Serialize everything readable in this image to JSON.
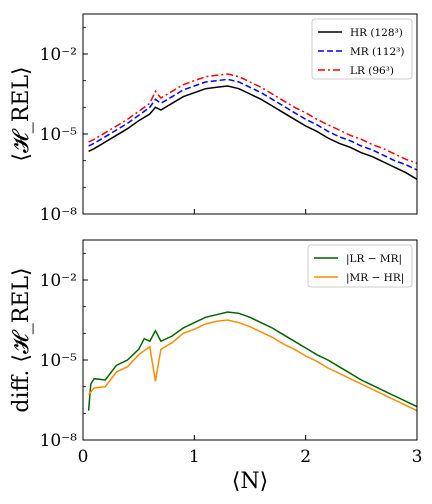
{
  "chart_data": [
    {
      "type": "line",
      "ylabel": "⟨𝓗_REL⟩",
      "xlim": [
        0,
        3
      ],
      "ylim_log10": [
        -8,
        -0.5
      ],
      "y_scale": "log",
      "y_ticks": [
        {
          "exp": -8,
          "label": "10⁻⁸"
        },
        {
          "exp": -5,
          "label": "10⁻⁵"
        },
        {
          "exp": -2,
          "label": "10⁻²"
        }
      ],
      "legend_position": "top-right",
      "series": [
        {
          "name": "HR (128³)",
          "color": "#000000",
          "style": "solid",
          "points": [
            [
              0.05,
              -5.65
            ],
            [
              0.1,
              -5.55
            ],
            [
              0.2,
              -5.3
            ],
            [
              0.3,
              -5.05
            ],
            [
              0.4,
              -4.8
            ],
            [
              0.5,
              -4.5
            ],
            [
              0.6,
              -4.25
            ],
            [
              0.65,
              -4.0
            ],
            [
              0.7,
              -4.1
            ],
            [
              0.8,
              -3.85
            ],
            [
              0.9,
              -3.6
            ],
            [
              1.0,
              -3.45
            ],
            [
              1.1,
              -3.3
            ],
            [
              1.2,
              -3.25
            ],
            [
              1.3,
              -3.2
            ],
            [
              1.4,
              -3.3
            ],
            [
              1.5,
              -3.5
            ],
            [
              1.6,
              -3.7
            ],
            [
              1.7,
              -3.95
            ],
            [
              1.8,
              -4.2
            ],
            [
              1.9,
              -4.45
            ],
            [
              2.0,
              -4.7
            ],
            [
              2.1,
              -4.9
            ],
            [
              2.2,
              -5.15
            ],
            [
              2.3,
              -5.35
            ],
            [
              2.4,
              -5.5
            ],
            [
              2.5,
              -5.7
            ],
            [
              2.6,
              -5.85
            ],
            [
              2.7,
              -6.05
            ],
            [
              2.8,
              -6.25
            ],
            [
              2.9,
              -6.45
            ],
            [
              3.0,
              -6.7
            ]
          ]
        },
        {
          "name": "MR (112³)",
          "color": "#0000ff",
          "style": "dashed",
          "points": [
            [
              0.05,
              -5.45
            ],
            [
              0.1,
              -5.35
            ],
            [
              0.2,
              -5.1
            ],
            [
              0.3,
              -4.85
            ],
            [
              0.4,
              -4.6
            ],
            [
              0.5,
              -4.3
            ],
            [
              0.6,
              -4.0
            ],
            [
              0.65,
              -3.7
            ],
            [
              0.7,
              -3.85
            ],
            [
              0.8,
              -3.6
            ],
            [
              0.9,
              -3.35
            ],
            [
              1.0,
              -3.2
            ],
            [
              1.1,
              -3.05
            ],
            [
              1.2,
              -3.0
            ],
            [
              1.3,
              -2.95
            ],
            [
              1.4,
              -3.05
            ],
            [
              1.5,
              -3.25
            ],
            [
              1.6,
              -3.45
            ],
            [
              1.7,
              -3.7
            ],
            [
              1.8,
              -3.95
            ],
            [
              1.9,
              -4.2
            ],
            [
              2.0,
              -4.45
            ],
            [
              2.1,
              -4.65
            ],
            [
              2.2,
              -4.9
            ],
            [
              2.3,
              -5.1
            ],
            [
              2.4,
              -5.25
            ],
            [
              2.5,
              -5.45
            ],
            [
              2.6,
              -5.6
            ],
            [
              2.7,
              -5.8
            ],
            [
              2.8,
              -6.0
            ],
            [
              2.9,
              -6.15
            ],
            [
              3.0,
              -6.35
            ]
          ]
        },
        {
          "name": "LR (96³)",
          "color": "#ff0000",
          "style": "dashdot",
          "points": [
            [
              0.05,
              -5.3
            ],
            [
              0.1,
              -5.2
            ],
            [
              0.2,
              -4.95
            ],
            [
              0.3,
              -4.7
            ],
            [
              0.4,
              -4.45
            ],
            [
              0.5,
              -4.15
            ],
            [
              0.6,
              -3.85
            ],
            [
              0.65,
              -3.4
            ],
            [
              0.7,
              -3.65
            ],
            [
              0.8,
              -3.4
            ],
            [
              0.9,
              -3.15
            ],
            [
              1.0,
              -3.0
            ],
            [
              1.1,
              -2.85
            ],
            [
              1.2,
              -2.8
            ],
            [
              1.3,
              -2.75
            ],
            [
              1.4,
              -2.85
            ],
            [
              1.5,
              -3.05
            ],
            [
              1.6,
              -3.25
            ],
            [
              1.7,
              -3.5
            ],
            [
              1.8,
              -3.75
            ],
            [
              1.9,
              -4.0
            ],
            [
              2.0,
              -4.2
            ],
            [
              2.1,
              -4.45
            ],
            [
              2.2,
              -4.65
            ],
            [
              2.3,
              -4.85
            ],
            [
              2.4,
              -5.05
            ],
            [
              2.5,
              -5.2
            ],
            [
              2.6,
              -5.4
            ],
            [
              2.7,
              -5.55
            ],
            [
              2.8,
              -5.75
            ],
            [
              2.9,
              -5.95
            ],
            [
              3.0,
              -6.1
            ]
          ]
        }
      ]
    },
    {
      "type": "line",
      "xlabel": "⟨N⟩",
      "ylabel": "diff. ⟨𝓗_REL⟩",
      "xlim": [
        0,
        3
      ],
      "x_ticks": [
        "0",
        "1",
        "2",
        "3"
      ],
      "ylim_log10": [
        -8,
        -0.5
      ],
      "y_scale": "log",
      "y_ticks": [
        {
          "exp": -8,
          "label": "10⁻⁸"
        },
        {
          "exp": -5,
          "label": "10⁻⁵"
        },
        {
          "exp": -2,
          "label": "10⁻²"
        }
      ],
      "legend_position": "top-right",
      "series": [
        {
          "name": "|LR − MR|",
          "color": "#006400",
          "style": "solid",
          "points": [
            [
              0.05,
              -6.9
            ],
            [
              0.07,
              -5.9
            ],
            [
              0.1,
              -5.7
            ],
            [
              0.2,
              -5.75
            ],
            [
              0.3,
              -5.2
            ],
            [
              0.4,
              -5.0
            ],
            [
              0.5,
              -4.6
            ],
            [
              0.55,
              -4.2
            ],
            [
              0.6,
              -4.3
            ],
            [
              0.65,
              -3.9
            ],
            [
              0.7,
              -4.3
            ],
            [
              0.8,
              -4.1
            ],
            [
              0.9,
              -3.8
            ],
            [
              1.0,
              -3.6
            ],
            [
              1.1,
              -3.4
            ],
            [
              1.2,
              -3.3
            ],
            [
              1.3,
              -3.2
            ],
            [
              1.4,
              -3.25
            ],
            [
              1.5,
              -3.4
            ],
            [
              1.6,
              -3.6
            ],
            [
              1.7,
              -3.8
            ],
            [
              1.8,
              -4.05
            ],
            [
              1.9,
              -4.3
            ],
            [
              2.0,
              -4.55
            ],
            [
              2.1,
              -4.8
            ],
            [
              2.2,
              -5.0
            ],
            [
              2.3,
              -5.25
            ],
            [
              2.4,
              -5.5
            ],
            [
              2.5,
              -5.75
            ],
            [
              2.6,
              -5.95
            ],
            [
              2.7,
              -6.15
            ],
            [
              2.8,
              -6.35
            ],
            [
              2.9,
              -6.55
            ],
            [
              3.0,
              -6.75
            ]
          ]
        },
        {
          "name": "|MR − HR|",
          "color": "#ff8c00",
          "style": "solid",
          "points": [
            [
              0.05,
              -6.3
            ],
            [
              0.1,
              -6.05
            ],
            [
              0.2,
              -6.0
            ],
            [
              0.3,
              -5.45
            ],
            [
              0.4,
              -5.25
            ],
            [
              0.5,
              -4.8
            ],
            [
              0.6,
              -4.5
            ],
            [
              0.65,
              -5.8
            ],
            [
              0.7,
              -4.6
            ],
            [
              0.8,
              -4.35
            ],
            [
              0.9,
              -4.0
            ],
            [
              1.0,
              -3.85
            ],
            [
              1.1,
              -3.65
            ],
            [
              1.2,
              -3.55
            ],
            [
              1.3,
              -3.5
            ],
            [
              1.4,
              -3.6
            ],
            [
              1.5,
              -3.75
            ],
            [
              1.6,
              -3.95
            ],
            [
              1.7,
              -4.15
            ],
            [
              1.8,
              -4.4
            ],
            [
              1.9,
              -4.6
            ],
            [
              2.0,
              -4.85
            ],
            [
              2.1,
              -5.05
            ],
            [
              2.2,
              -5.3
            ],
            [
              2.3,
              -5.5
            ],
            [
              2.4,
              -5.7
            ],
            [
              2.5,
              -5.9
            ],
            [
              2.6,
              -6.1
            ],
            [
              2.7,
              -6.3
            ],
            [
              2.8,
              -6.5
            ],
            [
              2.9,
              -6.7
            ],
            [
              3.0,
              -6.9
            ]
          ]
        }
      ]
    }
  ]
}
